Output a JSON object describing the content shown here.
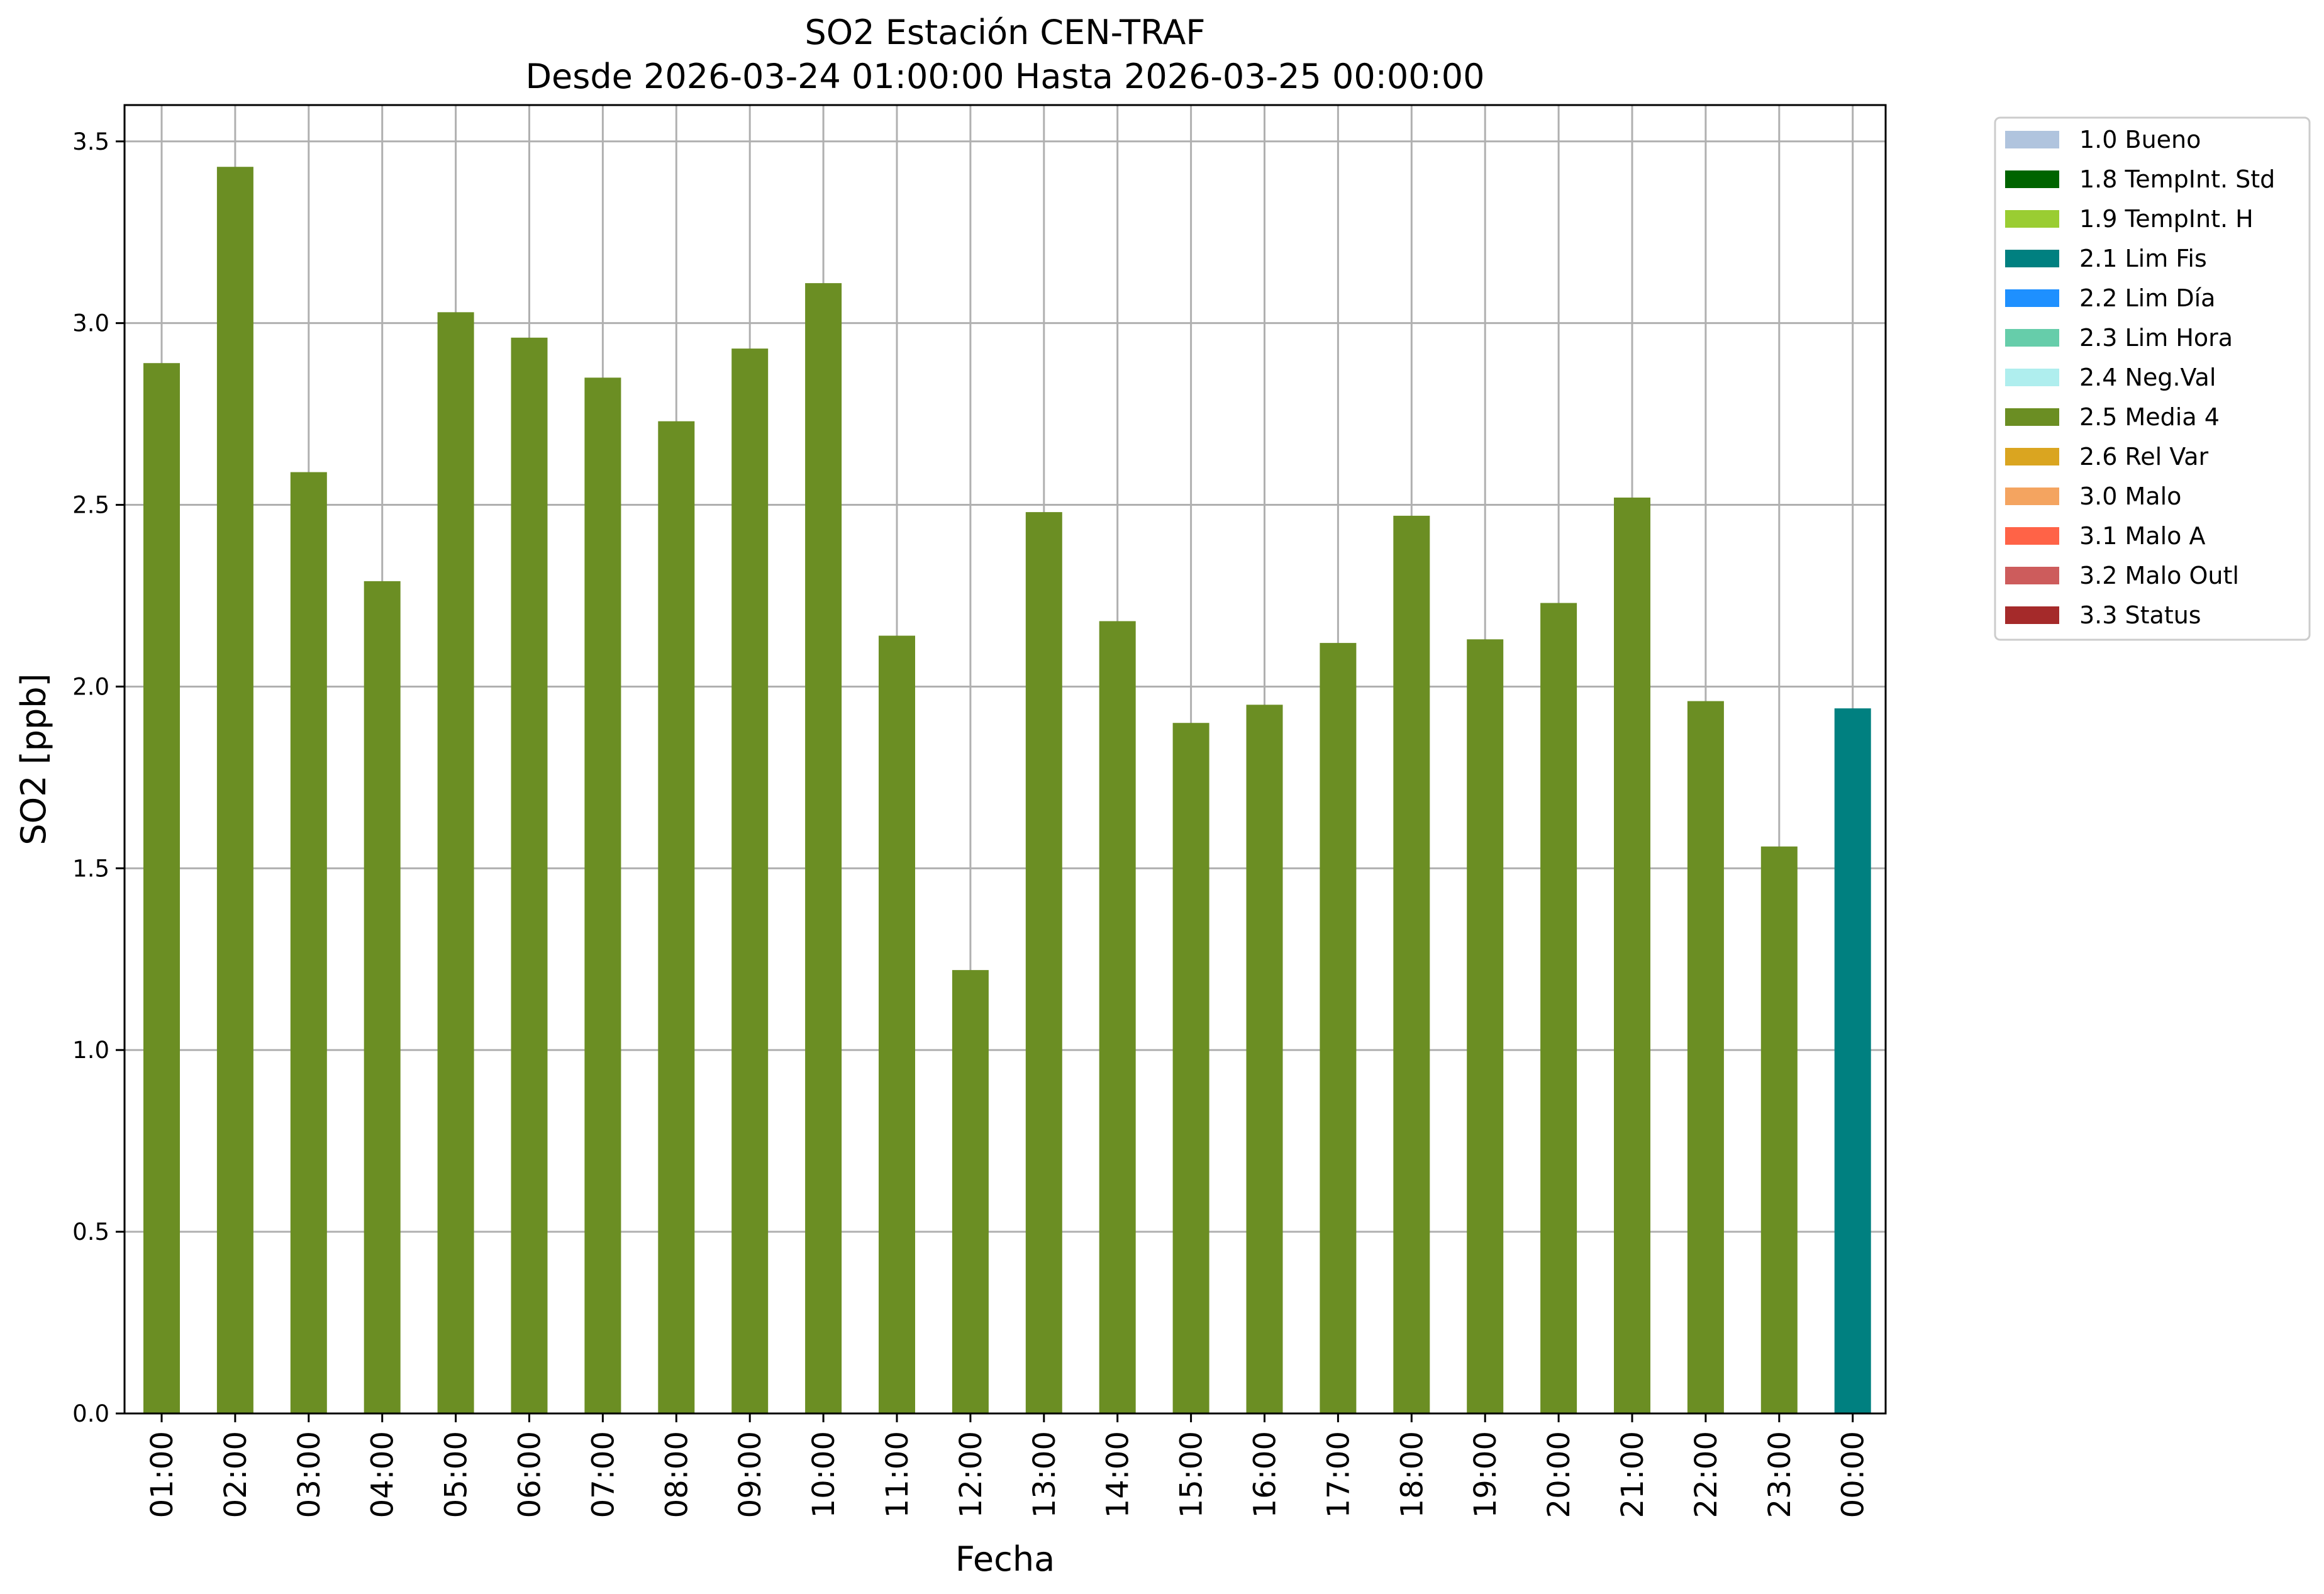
{
  "chart_data": {
    "type": "bar",
    "title": "SO2 Estación CEN-TRAF",
    "subtitle": "Desde 2026-03-24 01:00:00 Hasta 2026-03-25 00:00:00",
    "xlabel": "Fecha",
    "ylabel": "SO2 [ppb]",
    "ylim": [
      0,
      3.6
    ],
    "yticks": [
      "0.0",
      "0.5",
      "1.0",
      "1.5",
      "2.0",
      "2.5",
      "3.0",
      "3.5"
    ],
    "grid": true,
    "legend_position": "outside-top-right",
    "categories": [
      "01:00",
      "02:00",
      "03:00",
      "04:00",
      "05:00",
      "06:00",
      "07:00",
      "08:00",
      "09:00",
      "10:00",
      "11:00",
      "12:00",
      "13:00",
      "14:00",
      "15:00",
      "16:00",
      "17:00",
      "18:00",
      "19:00",
      "20:00",
      "21:00",
      "22:00",
      "23:00",
      "00:00"
    ],
    "values": [
      2.89,
      3.43,
      2.59,
      2.29,
      3.03,
      2.96,
      2.85,
      2.73,
      2.93,
      3.11,
      2.14,
      1.22,
      2.48,
      2.18,
      1.9,
      1.95,
      2.12,
      2.47,
      2.13,
      2.23,
      2.52,
      1.96,
      1.56,
      1.94
    ],
    "flags": [
      "2.5 Media 4",
      "2.5 Media 4",
      "2.5 Media 4",
      "2.5 Media 4",
      "2.5 Media 4",
      "2.5 Media 4",
      "2.5 Media 4",
      "2.5 Media 4",
      "2.5 Media 4",
      "2.5 Media 4",
      "2.5 Media 4",
      "2.5 Media 4",
      "2.5 Media 4",
      "2.5 Media 4",
      "2.5 Media 4",
      "2.5 Media 4",
      "2.5 Media 4",
      "2.5 Media 4",
      "2.5 Media 4",
      "2.5 Media 4",
      "2.5 Media 4",
      "2.5 Media 4",
      "2.5 Media 4",
      "2.1 Lim Fis"
    ],
    "legend": [
      {
        "label": "1.0 Bueno",
        "color": "#b0c4de"
      },
      {
        "label": "1.8 TempInt. Std",
        "color": "#006400"
      },
      {
        "label": "1.9 TempInt. H",
        "color": "#9acd32"
      },
      {
        "label": "2.1 Lim Fis",
        "color": "#008080"
      },
      {
        "label": "2.2 Lim Día",
        "color": "#1e90ff"
      },
      {
        "label": "2.3 Lim Hora",
        "color": "#66cdaa"
      },
      {
        "label": "2.4 Neg.Val",
        "color": "#afeeee"
      },
      {
        "label": "2.5 Media 4",
        "color": "#6b8e23"
      },
      {
        "label": "2.6 Rel Var",
        "color": "#daa520"
      },
      {
        "label": "3.0 Malo",
        "color": "#f4a460"
      },
      {
        "label": "3.1 Malo A",
        "color": "#ff6347"
      },
      {
        "label": "3.2 Malo Outl",
        "color": "#cd5c5c"
      },
      {
        "label": "3.3 Status",
        "color": "#a52a2a"
      }
    ]
  }
}
